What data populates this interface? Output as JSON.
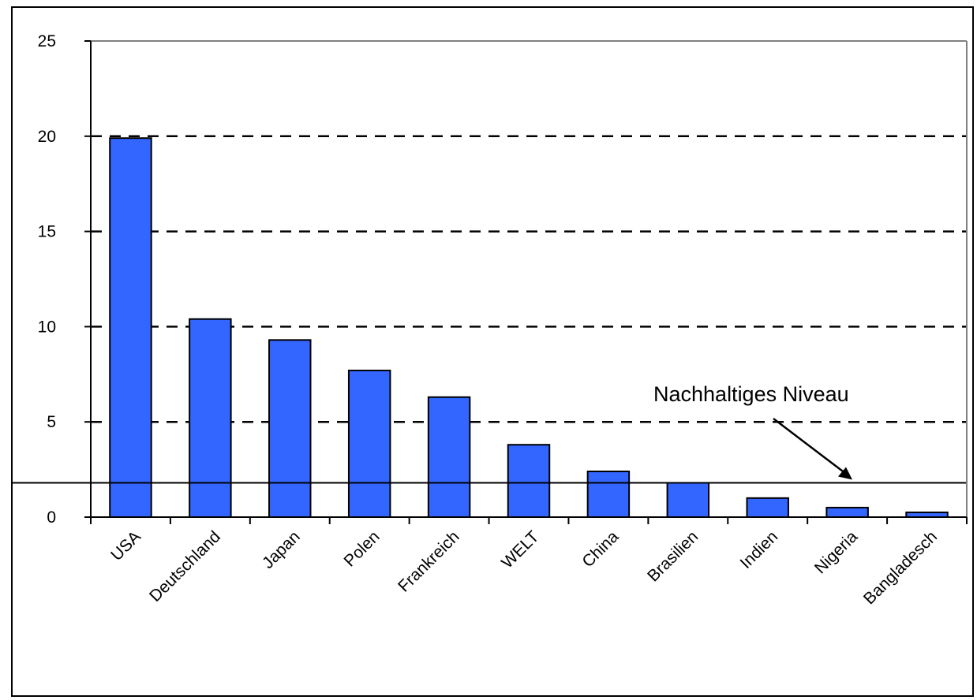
{
  "chart_data": {
    "type": "bar",
    "title": "",
    "xlabel": "",
    "ylabel": "",
    "categories": [
      "USA",
      "Deutschland",
      "Japan",
      "Polen",
      "Frankreich",
      "WELT",
      "China",
      "Brasilien",
      "Indien",
      "Nigeria",
      "Bangladesch"
    ],
    "values": [
      19.9,
      10.4,
      9.3,
      7.7,
      6.3,
      3.8,
      2.4,
      1.8,
      1.0,
      0.5,
      0.25
    ],
    "ylim": [
      0,
      25
    ],
    "yticks": [
      0,
      5,
      10,
      15,
      20,
      25
    ],
    "grid": "horizontal-dashed",
    "bar_color": "#3366ff",
    "reference_line": {
      "value": 1.8,
      "label": "Nachhaltiges Niveau"
    }
  }
}
